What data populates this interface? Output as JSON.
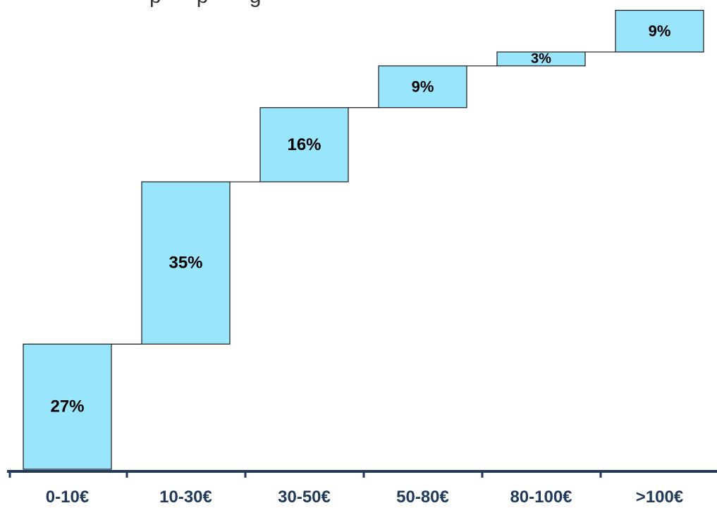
{
  "chart_data": {
    "type": "bar",
    "subtype": "waterfall",
    "title_fragment": "p      p       g",
    "categories": [
      "0-10€",
      "10-30€",
      "30-50€",
      "50-80€",
      "80-100€",
      ">100€"
    ],
    "values": [
      27,
      35,
      16,
      9,
      3,
      9
    ],
    "value_labels": [
      "27%",
      "35%",
      "16%",
      "9%",
      "3%",
      "9%"
    ],
    "ylim": [
      0,
      100
    ],
    "xlabel": "",
    "ylabel": "",
    "grid": false,
    "legend": "none",
    "colors": {
      "bar_fill": "#99e5fb",
      "bar_stroke": "#1a1a1a",
      "axis": "#1f3a5a",
      "category_text": "#1f3a5a",
      "value_text": "#000000"
    }
  }
}
